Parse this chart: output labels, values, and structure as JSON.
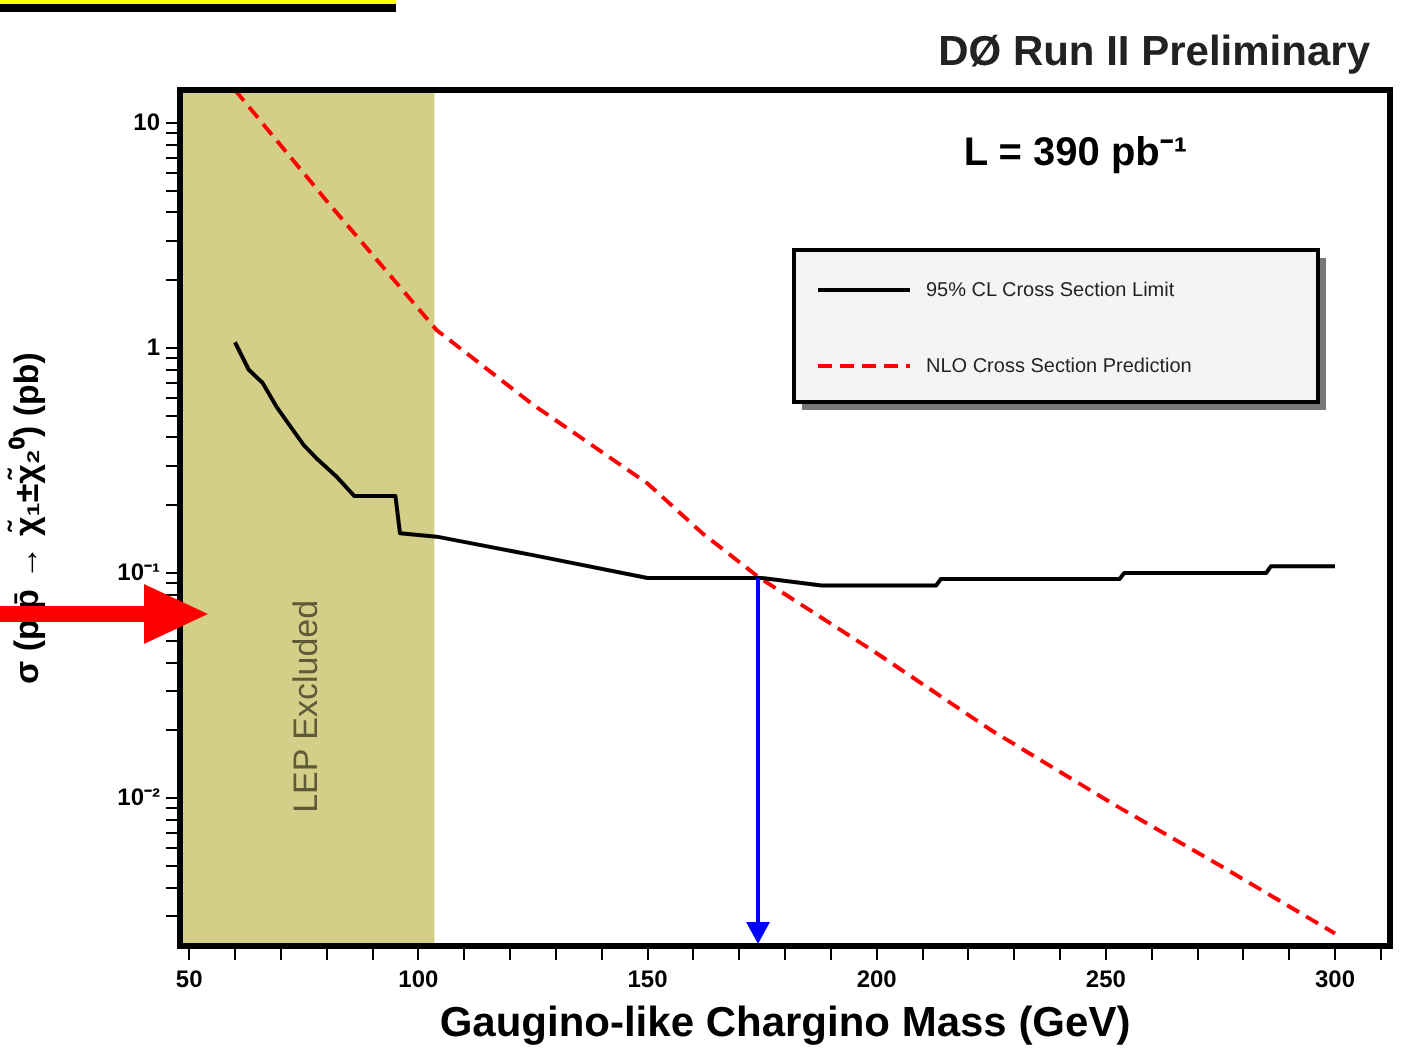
{
  "chart_data": {
    "type": "line",
    "title": "DØ Run II Preliminary",
    "xlabel": "Gaugino-like Chargino Mass (GeV)",
    "ylabel": "σ (p p̄ → χ̃₁±χ̃₂⁰) (pb)",
    "log": "y",
    "grid": false,
    "legend": "top right",
    "marker": "none",
    "xlim": [
      48,
      312
    ],
    "ylim": [
      0.0022,
      14
    ],
    "xticks": [
      50,
      {
        "value": 60,
        "label": null
      },
      {
        "value": 70,
        "label": null
      },
      {
        "value": 80,
        "label": null
      },
      {
        "value": 90,
        "label": null
      },
      100,
      {
        "value": 110,
        "label": null
      },
      {
        "value": 120,
        "label": null
      },
      {
        "value": 130,
        "label": null
      },
      {
        "value": 140,
        "label": null
      },
      150,
      {
        "value": 160,
        "label": null
      },
      {
        "value": 170,
        "label": null
      },
      {
        "value": 180,
        "label": null
      },
      {
        "value": 190,
        "label": null
      },
      200,
      {
        "value": 210,
        "label": null
      },
      {
        "value": 220,
        "label": null
      },
      {
        "value": 230,
        "label": null
      },
      {
        "value": 240,
        "label": null
      },
      250,
      {
        "value": 260,
        "label": null
      },
      {
        "value": 270,
        "label": null
      },
      {
        "value": 280,
        "label": null
      },
      {
        "value": 290,
        "label": null
      },
      300,
      {
        "value": 310,
        "label": null
      }
    ],
    "yticks": [
      {
        "value": 0.003,
        "label": null
      },
      {
        "value": 0.004,
        "label": null
      },
      {
        "value": 0.005,
        "label": null
      },
      {
        "value": 0.006,
        "label": null
      },
      {
        "value": 0.007,
        "label": null
      },
      {
        "value": 0.008,
        "label": null
      },
      {
        "value": 0.009,
        "label": null
      },
      {
        "value": 0.01,
        "label": "10⁻²"
      },
      {
        "value": 0.02,
        "label": null
      },
      {
        "value": 0.03,
        "label": null
      },
      {
        "value": 0.04,
        "label": null
      },
      {
        "value": 0.05,
        "label": null
      },
      {
        "value": 0.06,
        "label": null
      },
      {
        "value": 0.07,
        "label": null
      },
      {
        "value": 0.08,
        "label": null
      },
      {
        "value": 0.09,
        "label": null
      },
      {
        "value": 0.1,
        "label": "10⁻¹"
      },
      {
        "value": 0.2,
        "label": null
      },
      {
        "value": 0.3,
        "label": null
      },
      {
        "value": 0.4,
        "label": null
      },
      {
        "value": 0.5,
        "label": null
      },
      {
        "value": 0.6,
        "label": null
      },
      {
        "value": 0.7,
        "label": null
      },
      {
        "value": 0.8,
        "label": null
      },
      {
        "value": 0.9,
        "label": null
      },
      1,
      {
        "value": 2,
        "label": null
      },
      {
        "value": 3,
        "label": null
      },
      {
        "value": 4,
        "label": null
      },
      {
        "value": 5,
        "label": null
      },
      {
        "value": 6,
        "label": null
      },
      {
        "value": 7,
        "label": null
      },
      {
        "value": 8,
        "label": null
      },
      {
        "value": 9,
        "label": null
      },
      10
    ],
    "bands": [
      {
        "axis": "x",
        "from": 48,
        "to": 103.5,
        "label": "LEP Excluded",
        "color": "#d4cf88"
      }
    ],
    "annotations": [
      "L = 390 pb⁻¹"
    ],
    "series": [
      {
        "name": "95% CL Cross Section Limit",
        "color": "#000000",
        "line_style": "solid",
        "x": [
          60,
          63,
          66,
          69,
          72,
          75,
          78,
          82,
          86,
          95,
          96,
          104,
          125,
          150,
          175,
          188,
          213,
          214,
          253,
          254,
          285,
          286,
          300
        ],
        "values": [
          1.06,
          0.8,
          0.7,
          0.55,
          0.45,
          0.37,
          0.32,
          0.27,
          0.22,
          0.22,
          0.15,
          0.145,
          0.12,
          0.095,
          0.095,
          0.088,
          0.088,
          0.094,
          0.094,
          0.1,
          0.1,
          0.107,
          0.107
        ]
      },
      {
        "name": "NLO Cross Section Prediction",
        "color": "#ff0000",
        "line_style": "dashed",
        "x": [
          60,
          80,
          104,
          125,
          150,
          162,
          174.5,
          200,
          225,
          252,
          275,
          300
        ],
        "values": [
          14,
          4.5,
          1.2,
          0.56,
          0.25,
          0.15,
          0.095,
          0.044,
          0.02,
          0.0093,
          0.005,
          0.0025
        ]
      }
    ]
  }
}
